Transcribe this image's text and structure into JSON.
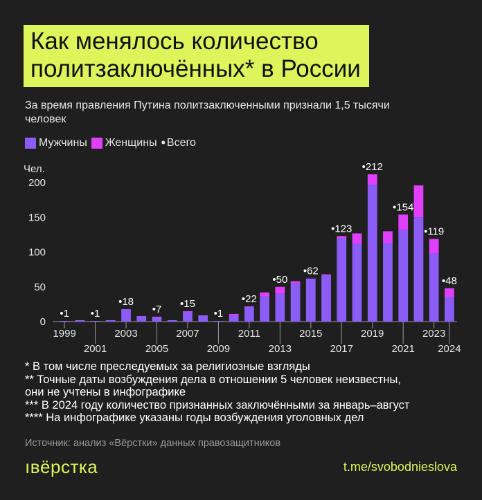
{
  "title_lines": [
    "Как менялось количество",
    "политзаключённых* в России"
  ],
  "subtitle": "За время правления Путина политзаключенными признали 1,5 тысячи человек",
  "legend": {
    "men": "Мужчины",
    "women": "Женщины",
    "total": "Всего"
  },
  "colors": {
    "accent": "#ddf55a",
    "men": "#8b5cf6",
    "women": "#e040fb",
    "background": "#1f1f1f"
  },
  "chart_data": {
    "type": "bar",
    "stacked": true,
    "ylabel": "Чел.",
    "ylim": [
      0,
      225
    ],
    "yticks": [
      0,
      50,
      100,
      150,
      200
    ],
    "grid": false,
    "categories": [
      "1999",
      "2000",
      "2001",
      "2002",
      "2003",
      "2004",
      "2005",
      "2006",
      "2007",
      "2008",
      "2009",
      "2010",
      "2011",
      "2012",
      "2013",
      "2014",
      "2015",
      "2016",
      "2017",
      "2018",
      "2019",
      "2020",
      "2021",
      "2022",
      "2023",
      "2024"
    ],
    "x_tick_labels_top": [
      "1999",
      "2003",
      "2007",
      "2011",
      "2015",
      "2019",
      "2023"
    ],
    "x_tick_labels_top_years": [
      1999,
      2003,
      2007,
      2011,
      2015,
      2019,
      2023
    ],
    "x_tick_labels_bottom": [
      "2001",
      "2005",
      "2009",
      "2013",
      "2017",
      "2021",
      "2024"
    ],
    "x_tick_labels_bottom_years": [
      2001,
      2005,
      2009,
      2013,
      2017,
      2021,
      2024
    ],
    "series": [
      {
        "name": "Мужчины",
        "values": [
          1,
          2,
          1,
          2,
          18,
          8,
          6,
          2,
          14,
          9,
          1,
          9,
          21,
          36,
          40,
          55,
          62,
          67,
          120,
          112,
          197,
          113,
          132,
          150,
          98,
          35
        ]
      },
      {
        "name": "Женщины",
        "values": [
          0,
          0,
          0,
          0,
          0,
          0,
          1,
          0,
          1,
          0,
          0,
          2,
          1,
          6,
          10,
          3,
          0,
          1,
          3,
          15,
          15,
          17,
          22,
          46,
          21,
          13
        ]
      }
    ],
    "data_labels": [
      {
        "year": "1999",
        "text": "•1"
      },
      {
        "year": "2001",
        "text": "•1"
      },
      {
        "year": "2003",
        "text": "•18"
      },
      {
        "year": "2005",
        "text": "•7"
      },
      {
        "year": "2007",
        "text": "•15"
      },
      {
        "year": "2009",
        "text": "•1"
      },
      {
        "year": "2011",
        "text": "•22"
      },
      {
        "year": "2013",
        "text": "•50"
      },
      {
        "year": "2015",
        "text": "•62"
      },
      {
        "year": "2017",
        "text": "•123"
      },
      {
        "year": "2019",
        "text": "•212"
      },
      {
        "year": "2021",
        "text": "•154"
      },
      {
        "year": "2023",
        "text": "•119"
      },
      {
        "year": "2024",
        "text": "•48"
      }
    ]
  },
  "footnotes": [
    "* В том числе преследуемых за религиозные взгляды",
    "** Точные даты возбуждения дела в отношении 5 человек неизвестны,",
    "они не учтены в инфографике",
    "*** В 2024 году количество признанных заключёнными за январь–август",
    "**** На инфографике указаны годы возбуждения уголовных дел"
  ],
  "source": "Источник: анализ «Вёрстки» данных правозащитников",
  "logo": "ıвёрстка",
  "telegram": "t.me/svobodnieslova"
}
